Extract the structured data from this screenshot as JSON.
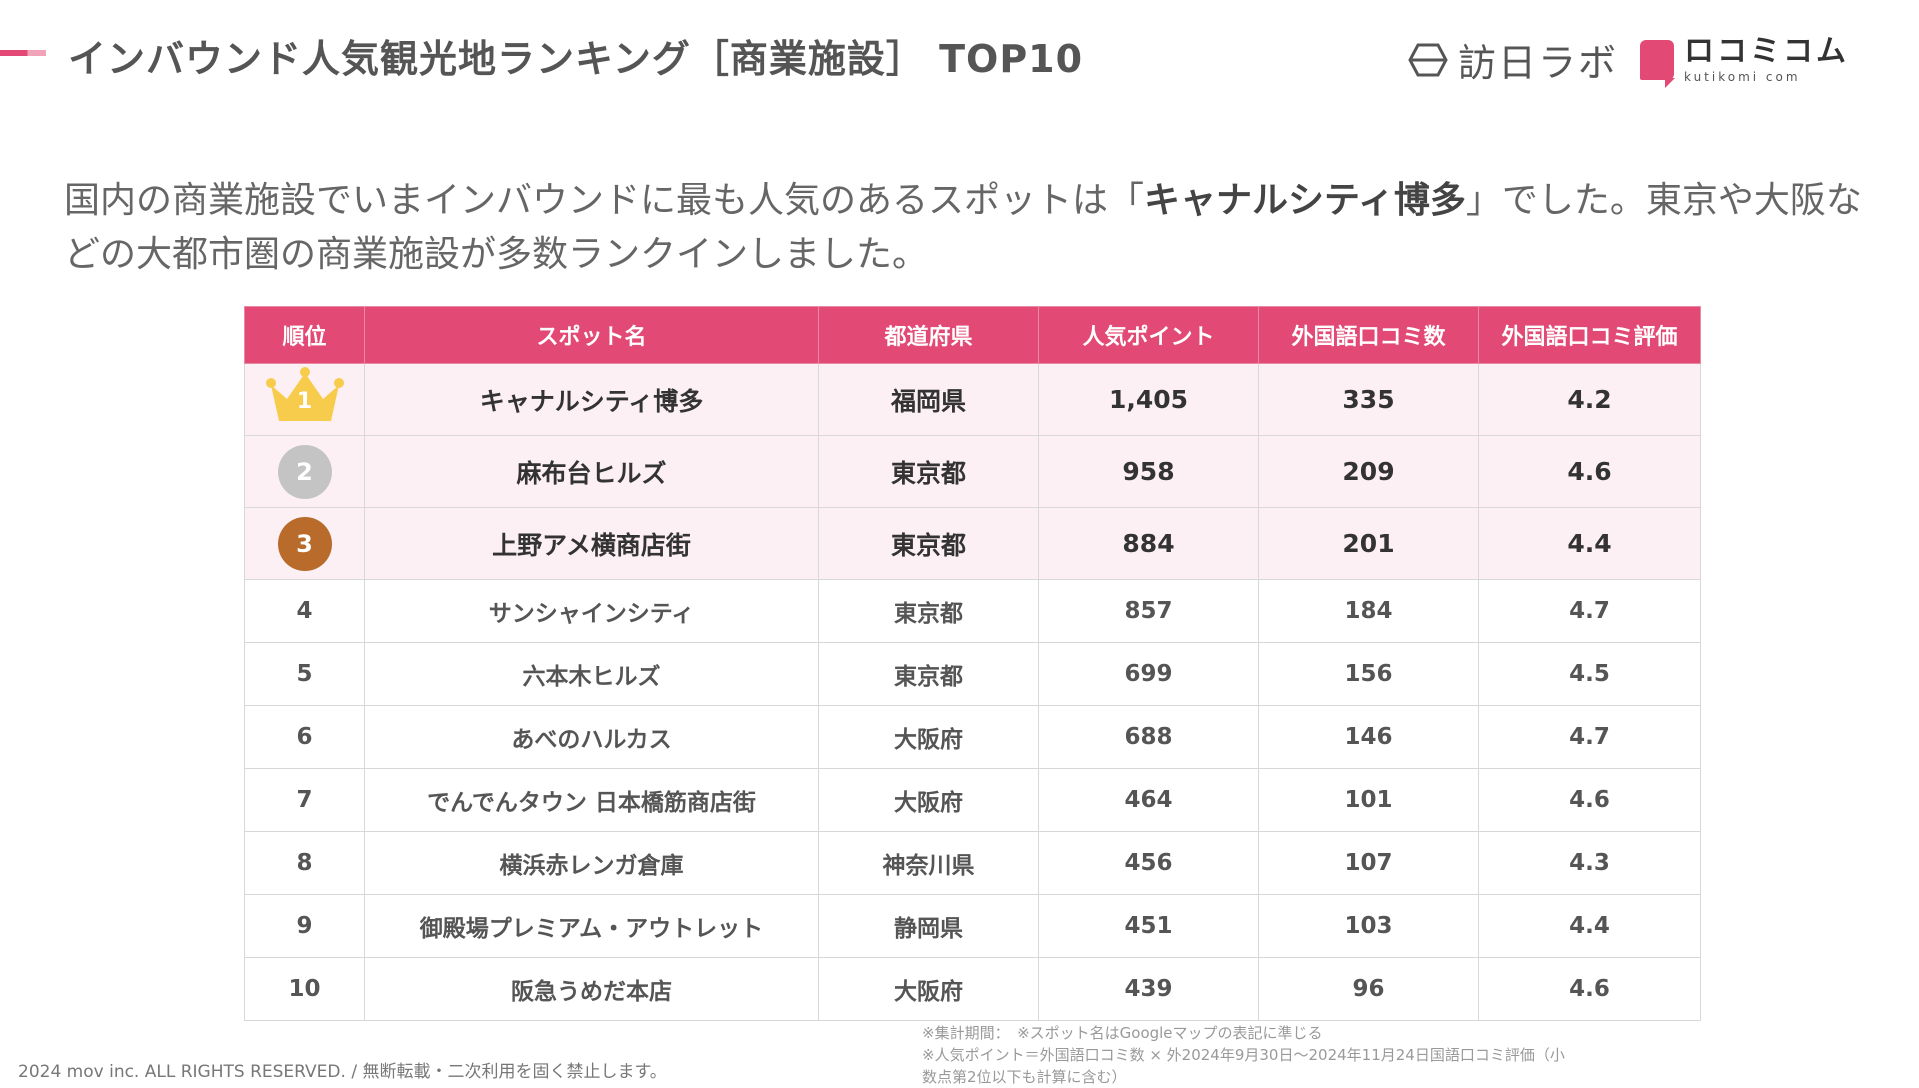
{
  "header": {
    "title": "インバウンド人気観光地ランキング［商業施設］ TOP10",
    "logo_houjin_text": "訪日ラボ",
    "logo_kuchikomi_main": "ロコミコム",
    "logo_kuchikomi_sub": "kutikomi com",
    "accent_color": "#e24a75"
  },
  "lead": {
    "before": "国内の商業施設でいまインバウンドに最も人気のあるスポットは「",
    "highlight": "キャナルシティ博多",
    "after": "」でした。東京や大阪などの大都市圏の商業施設が多数ランクインしました。"
  },
  "table": {
    "headers": [
      "順位",
      "スポット名",
      "都道府県",
      "人気ポイント",
      "外国語口コミ数",
      "外国語口コミ評価"
    ],
    "rows": [
      {
        "rank": "1",
        "name": "キャナルシティ博多",
        "pref": "福岡県",
        "points": "1,405",
        "reviews": "335",
        "rating": "4.2"
      },
      {
        "rank": "2",
        "name": "麻布台ヒルズ",
        "pref": "東京都",
        "points": "958",
        "reviews": "209",
        "rating": "4.6"
      },
      {
        "rank": "3",
        "name": "上野アメ横商店街",
        "pref": "東京都",
        "points": "884",
        "reviews": "201",
        "rating": "4.4"
      },
      {
        "rank": "4",
        "name": "サンシャインシティ",
        "pref": "東京都",
        "points": "857",
        "reviews": "184",
        "rating": "4.7"
      },
      {
        "rank": "5",
        "name": "六本木ヒルズ",
        "pref": "東京都",
        "points": "699",
        "reviews": "156",
        "rating": "4.5"
      },
      {
        "rank": "6",
        "name": "あべのハルカス",
        "pref": "大阪府",
        "points": "688",
        "reviews": "146",
        "rating": "4.7"
      },
      {
        "rank": "7",
        "name": "でんでんタウン 日本橋筋商店街",
        "pref": "大阪府",
        "points": "464",
        "reviews": "101",
        "rating": "4.6"
      },
      {
        "rank": "8",
        "name": "横浜赤レンガ倉庫",
        "pref": "神奈川県",
        "points": "456",
        "reviews": "107",
        "rating": "4.3"
      },
      {
        "rank": "9",
        "name": "御殿場プレミアム・アウトレット",
        "pref": "静岡県",
        "points": "451",
        "reviews": "103",
        "rating": "4.4"
      },
      {
        "rank": "10",
        "name": "阪急うめだ本店",
        "pref": "大阪府",
        "points": "439",
        "reviews": "96",
        "rating": "4.6"
      }
    ]
  },
  "notes": [
    "※集計期間：　※スポット名はGoogleマップの表記に準じる",
    "※人気ポイント＝外国語口コミ数 × 外2024年9月30日〜2024年11月24日国語口コミ評価（小",
    "数点第2位以下も計算に含む）"
  ],
  "footer": {
    "copyright": "2024 mov inc. ALL RIGHTS RESERVED. / 無断転載・二次利用を固く禁止します。"
  }
}
